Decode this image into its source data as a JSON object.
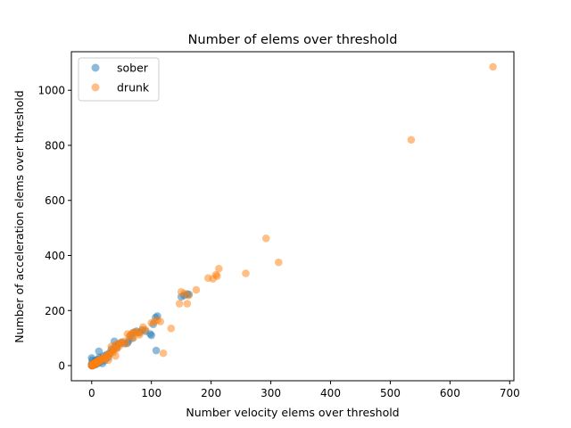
{
  "chart_data": {
    "type": "scatter",
    "title": "Number of elems over threshold",
    "xlabel": "Number velocity elems over threshold",
    "ylabel": "Number of acceleration elems over threshold",
    "xlim": [
      -34,
      707
    ],
    "ylim": [
      -55,
      1140
    ],
    "xticks": [
      0,
      100,
      200,
      300,
      400,
      500,
      600,
      700
    ],
    "yticks": [
      0,
      200,
      400,
      600,
      800,
      1000
    ],
    "grid": false,
    "legend_position": "top-left",
    "series": [
      {
        "name": "sober",
        "color": "#1f77b4",
        "points": [
          [
            0,
            0
          ],
          [
            0,
            2
          ],
          [
            0,
            5
          ],
          [
            1,
            0
          ],
          [
            1,
            3
          ],
          [
            1,
            8
          ],
          [
            2,
            1
          ],
          [
            2,
            4
          ],
          [
            0,
            28
          ],
          [
            1,
            20
          ],
          [
            3,
            6
          ],
          [
            4,
            10
          ],
          [
            5,
            3
          ],
          [
            5,
            14
          ],
          [
            6,
            8
          ],
          [
            7,
            18
          ],
          [
            8,
            5
          ],
          [
            9,
            12
          ],
          [
            10,
            22
          ],
          [
            12,
            10
          ],
          [
            12,
            52
          ],
          [
            13,
            30
          ],
          [
            15,
            15
          ],
          [
            16,
            25
          ],
          [
            18,
            8
          ],
          [
            20,
            35
          ],
          [
            22,
            18
          ],
          [
            25,
            40
          ],
          [
            28,
            30
          ],
          [
            30,
            45
          ],
          [
            33,
            60
          ],
          [
            35,
            55
          ],
          [
            38,
            88
          ],
          [
            40,
            70
          ],
          [
            42,
            65
          ],
          [
            45,
            78
          ],
          [
            50,
            85
          ],
          [
            55,
            80
          ],
          [
            60,
            82
          ],
          [
            62,
            90
          ],
          [
            65,
            110
          ],
          [
            68,
            100
          ],
          [
            70,
            120
          ],
          [
            75,
            125
          ],
          [
            80,
            120
          ],
          [
            85,
            130
          ],
          [
            90,
            125
          ],
          [
            98,
            115
          ],
          [
            100,
            110
          ],
          [
            103,
            150
          ],
          [
            107,
            175
          ],
          [
            110,
            180
          ],
          [
            108,
            55
          ],
          [
            150,
            250
          ],
          [
            155,
            255
          ],
          [
            160,
            260
          ],
          [
            163,
            258
          ]
        ]
      },
      {
        "name": "drunk",
        "color": "#ff7f0e",
        "points": [
          [
            0,
            0
          ],
          [
            0,
            2
          ],
          [
            1,
            1
          ],
          [
            1,
            4
          ],
          [
            2,
            0
          ],
          [
            2,
            6
          ],
          [
            3,
            2
          ],
          [
            3,
            8
          ],
          [
            4,
            4
          ],
          [
            5,
            10
          ],
          [
            6,
            6
          ],
          [
            7,
            12
          ],
          [
            8,
            9
          ],
          [
            9,
            15
          ],
          [
            10,
            12
          ],
          [
            11,
            18
          ],
          [
            12,
            14
          ],
          [
            13,
            20
          ],
          [
            15,
            18
          ],
          [
            16,
            25
          ],
          [
            18,
            22
          ],
          [
            20,
            28
          ],
          [
            22,
            30
          ],
          [
            24,
            25
          ],
          [
            25,
            35
          ],
          [
            27,
            38
          ],
          [
            28,
            20
          ],
          [
            30,
            42
          ],
          [
            32,
            50
          ],
          [
            33,
            70
          ],
          [
            35,
            55
          ],
          [
            36,
            48
          ],
          [
            38,
            62
          ],
          [
            40,
            35
          ],
          [
            40,
            75
          ],
          [
            42,
            60
          ],
          [
            44,
            78
          ],
          [
            46,
            70
          ],
          [
            48,
            80
          ],
          [
            50,
            85
          ],
          [
            55,
            88
          ],
          [
            58,
            80
          ],
          [
            60,
            115
          ],
          [
            63,
            105
          ],
          [
            65,
            110
          ],
          [
            68,
            118
          ],
          [
            70,
            100
          ],
          [
            72,
            122
          ],
          [
            75,
            120
          ],
          [
            78,
            118
          ],
          [
            80,
            112
          ],
          [
            83,
            125
          ],
          [
            86,
            140
          ],
          [
            90,
            130
          ],
          [
            100,
            155
          ],
          [
            105,
            160
          ],
          [
            110,
            165
          ],
          [
            115,
            160
          ],
          [
            120,
            45
          ],
          [
            133,
            135
          ],
          [
            147,
            225
          ],
          [
            150,
            268
          ],
          [
            155,
            262
          ],
          [
            160,
            225
          ],
          [
            162,
            255
          ],
          [
            175,
            275
          ],
          [
            195,
            318
          ],
          [
            203,
            315
          ],
          [
            208,
            330
          ],
          [
            210,
            325
          ],
          [
            213,
            352
          ],
          [
            258,
            335
          ],
          [
            292,
            462
          ],
          [
            313,
            375
          ],
          [
            535,
            820
          ],
          [
            672,
            1085
          ]
        ]
      }
    ]
  }
}
